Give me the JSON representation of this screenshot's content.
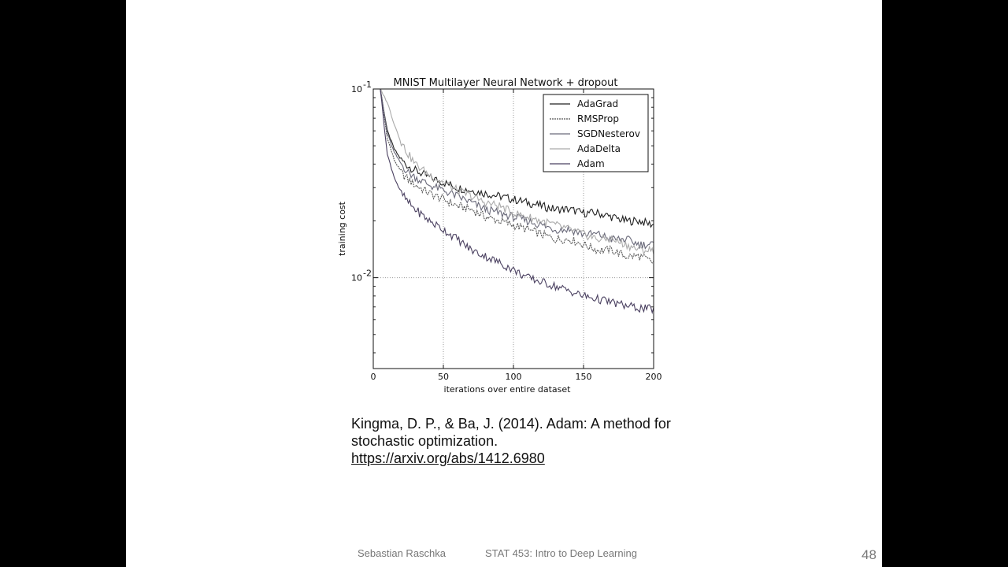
{
  "chart_data": {
    "type": "line",
    "title": "MNIST Multilayer Neural Network + dropout",
    "xlabel": "iterations over entire dataset",
    "ylabel": "training cost",
    "xlim": [
      0,
      200
    ],
    "ylim": [
      0.0033,
      0.1
    ],
    "yscale": "log",
    "grid": true,
    "legend_position": "top-right",
    "xticks": [
      "0",
      "50",
      "100",
      "150",
      "200"
    ],
    "yticks": [
      {
        "value": 0.1,
        "base": "10",
        "exp": "-1"
      },
      {
        "value": 0.01,
        "base": "10",
        "exp": "-2"
      }
    ],
    "x": [
      5,
      10,
      15,
      20,
      25,
      30,
      40,
      50,
      60,
      70,
      80,
      90,
      100,
      110,
      120,
      130,
      140,
      150,
      160,
      170,
      180,
      190,
      200
    ],
    "series": [
      {
        "name": "AdaGrad",
        "color": "#222222",
        "dash": "",
        "values": [
          0.1,
          0.06,
          0.048,
          0.042,
          0.039,
          0.037,
          0.034,
          0.032,
          0.03,
          0.029,
          0.028,
          0.027,
          0.026,
          0.025,
          0.024,
          0.023,
          0.023,
          0.022,
          0.022,
          0.021,
          0.02,
          0.02,
          0.019
        ]
      },
      {
        "name": "RMSProp",
        "color": "#555555",
        "dash": "2,1",
        "values": [
          0.1,
          0.055,
          0.042,
          0.036,
          0.033,
          0.031,
          0.028,
          0.026,
          0.024,
          0.023,
          0.021,
          0.02,
          0.019,
          0.018,
          0.017,
          0.016,
          0.016,
          0.015,
          0.014,
          0.014,
          0.013,
          0.013,
          0.012
        ]
      },
      {
        "name": "SGDNesterov",
        "color": "#6a6a7a",
        "dash": "",
        "values": [
          0.1,
          0.058,
          0.046,
          0.04,
          0.036,
          0.034,
          0.031,
          0.029,
          0.027,
          0.025,
          0.023,
          0.022,
          0.021,
          0.02,
          0.019,
          0.018,
          0.018,
          0.017,
          0.017,
          0.016,
          0.016,
          0.015,
          0.015
        ]
      },
      {
        "name": "AdaDelta",
        "color": "#aaaaaa",
        "dash": "",
        "values": [
          0.1,
          0.085,
          0.065,
          0.052,
          0.045,
          0.04,
          0.035,
          0.032,
          0.029,
          0.027,
          0.025,
          0.024,
          0.022,
          0.021,
          0.02,
          0.019,
          0.018,
          0.017,
          0.016,
          0.016,
          0.015,
          0.014,
          0.014
        ]
      },
      {
        "name": "Adam",
        "color": "#4a4060",
        "dash": "",
        "values": [
          0.1,
          0.045,
          0.034,
          0.028,
          0.025,
          0.023,
          0.02,
          0.018,
          0.016,
          0.014,
          0.013,
          0.012,
          0.011,
          0.01,
          0.0095,
          0.009,
          0.0085,
          0.008,
          0.0077,
          0.0074,
          0.0071,
          0.0069,
          0.0068
        ]
      }
    ]
  },
  "citation": {
    "text": "Kingma, D. P., & Ba, J. (2014). Adam: A method for stochastic optimization. ",
    "link": "https://arxiv.org/abs/1412.6980"
  },
  "footer": {
    "author": "Sebastian Raschka",
    "course": "STAT 453: Intro to Deep Learning",
    "page": "48"
  }
}
